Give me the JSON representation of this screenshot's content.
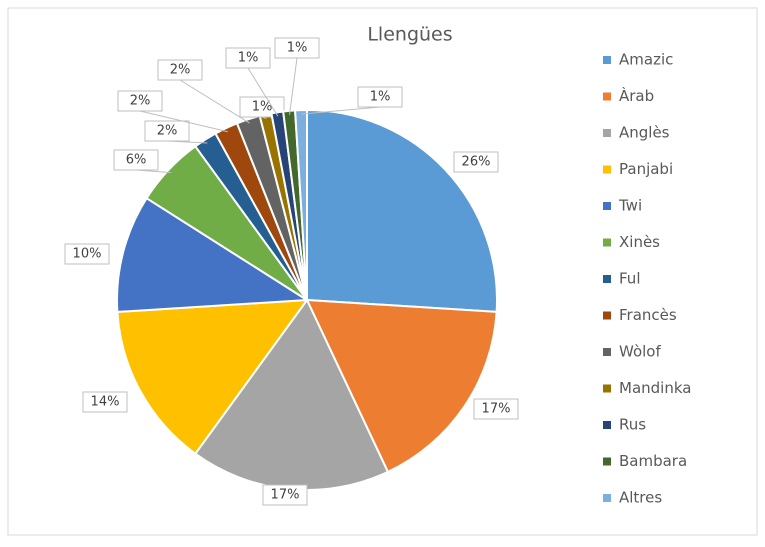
{
  "chart_data": {
    "type": "pie",
    "title": "Llengües",
    "categories": [
      "Amazic",
      "Àrab",
      "Anglès",
      "Panjabi",
      "Twi",
      "Xinès",
      "Ful",
      "Francès",
      "Wòlof",
      "Mandinka",
      "Rus",
      "Bambara",
      "Altres"
    ],
    "values": [
      26,
      17,
      17,
      14,
      10,
      6,
      2,
      2,
      2,
      1,
      1,
      1,
      1
    ],
    "value_labels": [
      "26%",
      "17%",
      "17%",
      "14%",
      "10%",
      "6%",
      "2%",
      "2%",
      "2%",
      "1%",
      "1%",
      "1%",
      "1%"
    ],
    "colors": [
      "#5b9bd5",
      "#ed7d31",
      "#a5a5a5",
      "#ffc000",
      "#4472c4",
      "#70ad47",
      "#255e91",
      "#9e480e",
      "#636363",
      "#997300",
      "#264478",
      "#43682b",
      "#7cafdd"
    ],
    "legend": "right"
  }
}
